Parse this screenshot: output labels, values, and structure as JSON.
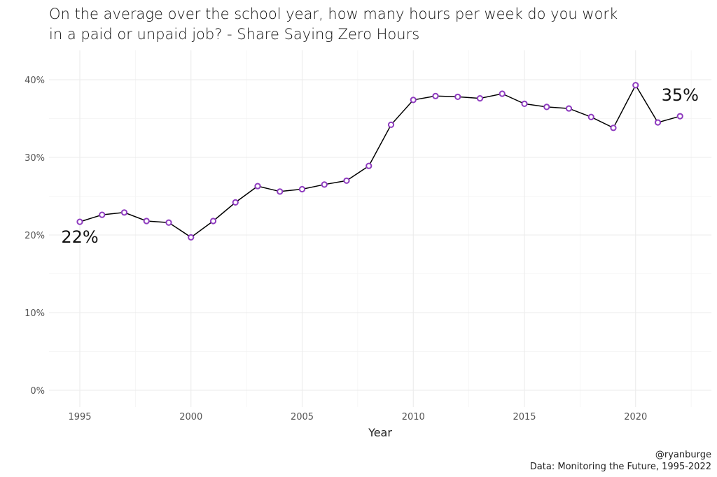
{
  "title": {
    "line1": "On the average over the school year, how many hours per week do you work",
    "line2": "in a paid or unpaid job? - Share Saying Zero Hours"
  },
  "caption": {
    "handle": "@ryanburge",
    "source": "Data: Monitoring the Future, 1995-2022"
  },
  "colors": {
    "line": "#000000",
    "point_fill": "#ffffff",
    "point_stroke": "#8e3bbf",
    "grid": "#ebebeb"
  },
  "chart_data": {
    "type": "line",
    "title": "On the average over the school year, how many hours per week do you work in a paid or unpaid job? - Share Saying Zero Hours",
    "xlabel": "Year",
    "ylabel": "",
    "xlim": [
      1994.3,
      2022.9
    ],
    "ylim": [
      0,
      0.41
    ],
    "x_ticks": [
      1995,
      2000,
      2005,
      2010,
      2015,
      2020
    ],
    "x_tick_labels": [
      "1995",
      "2000",
      "2005",
      "2010",
      "2015",
      "2020"
    ],
    "y_ticks": [
      0,
      0.1,
      0.2,
      0.3,
      0.4
    ],
    "y_tick_labels": [
      "0%",
      "10%",
      "20%",
      "30%",
      "40%"
    ],
    "grid": true,
    "x": [
      1995,
      1996,
      1997,
      1998,
      1999,
      2000,
      2001,
      2002,
      2003,
      2004,
      2005,
      2006,
      2007,
      2008,
      2009,
      2010,
      2011,
      2012,
      2013,
      2014,
      2015,
      2016,
      2017,
      2018,
      2019,
      2020,
      2021,
      2022
    ],
    "y": [
      0.217,
      0.226,
      0.229,
      0.218,
      0.216,
      0.197,
      0.218,
      0.242,
      0.263,
      0.256,
      0.259,
      0.265,
      0.27,
      0.289,
      0.342,
      0.374,
      0.379,
      0.378,
      0.376,
      0.382,
      0.369,
      0.365,
      0.363,
      0.352,
      0.338,
      0.393,
      0.345,
      0.353
    ],
    "annotations": [
      {
        "text": "22%",
        "x": 1995,
        "y": 0.217,
        "position": "below"
      },
      {
        "text": "35%",
        "x": 2022,
        "y": 0.353,
        "position": "above"
      }
    ]
  }
}
